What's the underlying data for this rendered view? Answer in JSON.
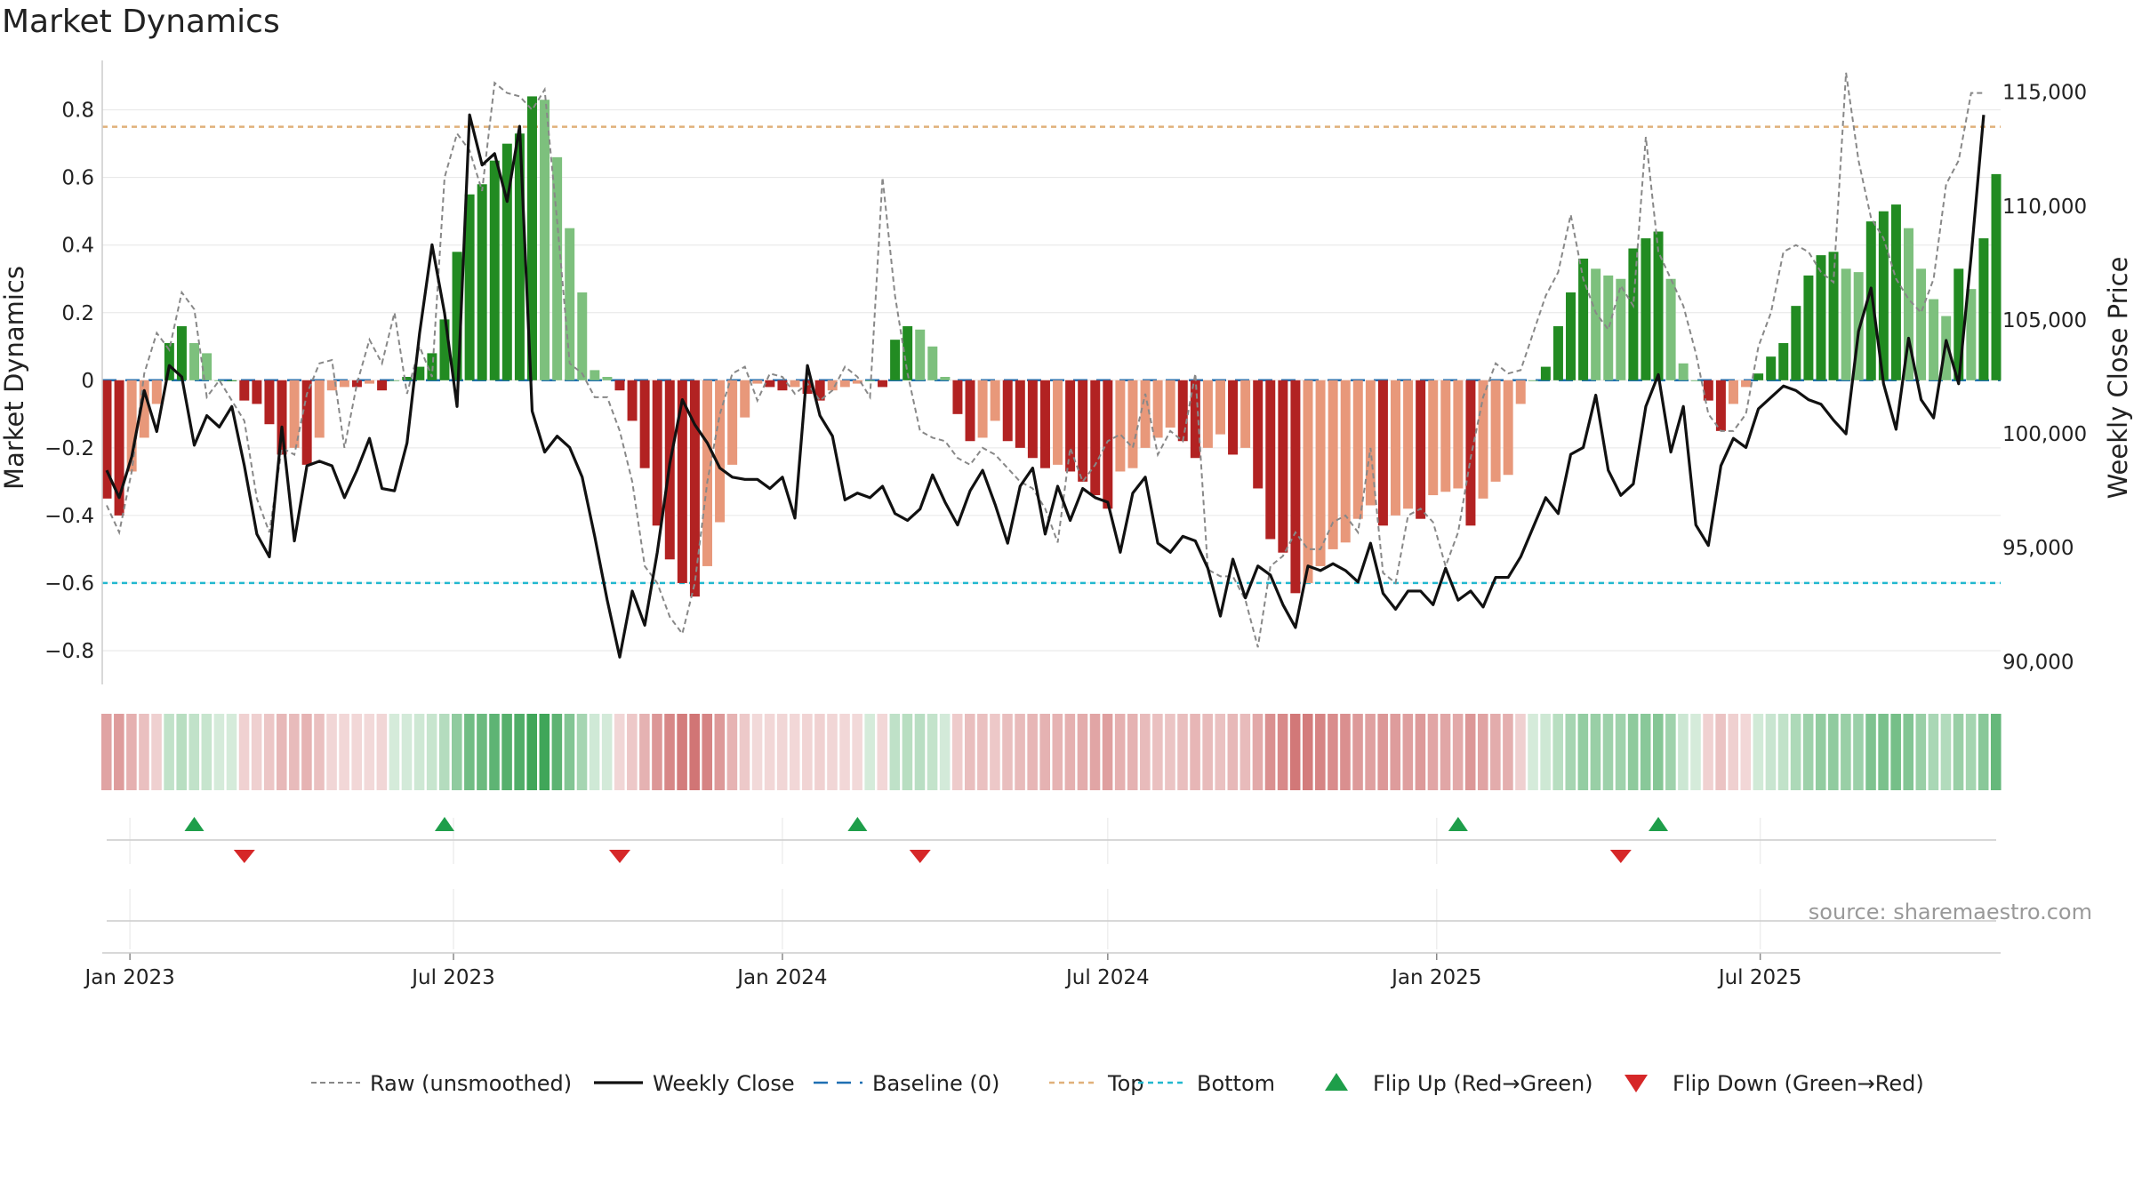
{
  "chart_data": {
    "type": "bar",
    "title": "Market Dynamics",
    "ylabel": "Market Dynamics",
    "y2label": "Weekly Close Price",
    "source": "source: sharemaestro.com",
    "ylim": [
      -0.9,
      0.92
    ],
    "y2lim": [
      89000,
      116000
    ],
    "yticks": [
      "0.8",
      "0.6",
      "0.4",
      "0.2",
      "0",
      "−0.2",
      "−0.4",
      "−0.6",
      "−0.8"
    ],
    "y2ticks": [
      "115,000",
      "110,000",
      "105,000",
      "100,000",
      "95,000",
      "90,000"
    ],
    "xticks": [
      "Jan 2023",
      "Jul 2023",
      "Jan 2024",
      "Jul 2024",
      "Jan 2025",
      "Jul 2025"
    ],
    "x_start": "2022-12-19",
    "top_level": 0.75,
    "bottom_level": -0.6,
    "baseline": 0,
    "grid": true,
    "legend_position": "bottom",
    "colors": {
      "strong_up": "#228b22",
      "weak_up": "#7dc07d",
      "strong_down": "#b22222",
      "weak_down": "#e8987a",
      "close": "#111111",
      "raw": "#888888",
      "baseline": "#1f6fb2",
      "top": "#e0b07a",
      "bottom": "#22b8cf",
      "flip_up": "#1e9e4a",
      "flip_down": "#d62728"
    },
    "series": [
      {
        "name": "Market Dynamics (smoothed)",
        "values": [
          -0.35,
          -0.4,
          -0.27,
          -0.17,
          -0.07,
          0.11,
          0.16,
          0.11,
          0.08,
          0,
          0,
          -0.06,
          -0.07,
          -0.13,
          -0.22,
          -0.2,
          -0.25,
          -0.17,
          -0.03,
          -0.02,
          -0.02,
          -0.01,
          -0.03,
          0,
          0.01,
          0.04,
          0.08,
          0.18,
          0.38,
          0.55,
          0.58,
          0.65,
          0.7,
          0.73,
          0.84,
          0.83,
          0.66,
          0.45,
          0.26,
          0.03,
          0.01,
          -0.03,
          -0.12,
          -0.26,
          -0.43,
          -0.53,
          -0.6,
          -0.64,
          -0.55,
          -0.42,
          -0.25,
          -0.11,
          -0.01,
          -0.02,
          -0.03,
          -0.02,
          -0.04,
          -0.06,
          -0.03,
          -0.02,
          -0.01,
          0,
          -0.02,
          0.12,
          0.16,
          0.15,
          0.1,
          0.01,
          -0.1,
          -0.18,
          -0.17,
          -0.12,
          -0.18,
          -0.2,
          -0.23,
          -0.26,
          -0.25,
          -0.27,
          -0.3,
          -0.34,
          -0.38,
          -0.27,
          -0.26,
          -0.2,
          -0.17,
          -0.14,
          -0.18,
          -0.23,
          -0.2,
          -0.16,
          -0.22,
          -0.2,
          -0.32,
          -0.47,
          -0.51,
          -0.63,
          -0.6,
          -0.55,
          -0.5,
          -0.48,
          -0.41,
          -0.37,
          -0.43,
          -0.4,
          -0.38,
          -0.41,
          -0.34,
          -0.33,
          -0.32,
          -0.43,
          -0.35,
          -0.3,
          -0.28,
          -0.07,
          0,
          0.04,
          0.16,
          0.26,
          0.36,
          0.33,
          0.31,
          0.3,
          0.39,
          0.42,
          0.44,
          0.3,
          0.05,
          0,
          -0.06,
          -0.15,
          -0.07,
          -0.02,
          0.02,
          0.07,
          0.11,
          0.22,
          0.31,
          0.37,
          0.38,
          0.33,
          0.32,
          0.47,
          0.5,
          0.52,
          0.45,
          0.33,
          0.24,
          0.19,
          0.33,
          0.27,
          0.42,
          0.61
        ]
      },
      {
        "name": "Raw (unsmoothed)",
        "values": [
          -0.37,
          -0.45,
          -0.27,
          0.02,
          0.14,
          0.09,
          0.26,
          0.21,
          -0.05,
          0,
          -0.06,
          -0.12,
          -0.35,
          -0.45,
          -0.2,
          -0.22,
          -0.04,
          0.05,
          0.06,
          -0.2,
          -0.01,
          0.12,
          0.05,
          0.2,
          -0.04,
          0.1,
          0.01,
          0.6,
          0.73,
          0.68,
          0.56,
          0.88,
          0.85,
          0.84,
          0.8,
          0.86,
          0.47,
          0.05,
          0.02,
          -0.05,
          -0.05,
          -0.15,
          -0.3,
          -0.55,
          -0.6,
          -0.7,
          -0.75,
          -0.6,
          -0.3,
          -0.1,
          0.02,
          0.04,
          -0.06,
          0.02,
          0.01,
          -0.04,
          -0.01,
          -0.06,
          -0.03,
          0.04,
          0.01,
          -0.05,
          0.6,
          0.25,
          0.02,
          -0.15,
          -0.17,
          -0.18,
          -0.23,
          -0.25,
          -0.2,
          -0.22,
          -0.26,
          -0.3,
          -0.32,
          -0.38,
          -0.48,
          -0.2,
          -0.3,
          -0.25,
          -0.18,
          -0.16,
          -0.2,
          -0.04,
          -0.22,
          -0.15,
          -0.18,
          0.02,
          -0.56,
          -0.58,
          -0.58,
          -0.65,
          -0.79,
          -0.55,
          -0.52,
          -0.45,
          -0.5,
          -0.5,
          -0.42,
          -0.4,
          -0.45,
          -0.2,
          -0.57,
          -0.6,
          -0.4,
          -0.38,
          -0.42,
          -0.55,
          -0.45,
          -0.23,
          -0.05,
          0.05,
          0.02,
          0.03,
          0.14,
          0.25,
          0.32,
          0.49,
          0.3,
          0.2,
          0.15,
          0.28,
          0.22,
          0.72,
          0.38,
          0.3,
          0.22,
          0.08,
          -0.1,
          -0.15,
          -0.15,
          -0.1,
          0.1,
          0.2,
          0.38,
          0.4,
          0.38,
          0.32,
          0.29,
          0.91,
          0.65,
          0.48,
          0.42,
          0.3,
          0.24,
          0.2,
          0.3,
          0.58,
          0.65,
          0.85,
          0.85
        ]
      },
      {
        "name": "Weekly Close",
        "values": [
          98.4,
          97.2,
          99,
          101.9,
          100.1,
          103,
          102.5,
          99.5,
          100.8,
          100.3,
          101.2,
          98.6,
          95.6,
          94.6,
          100.3,
          95.3,
          98.6,
          98.8,
          98.6,
          97.2,
          98.4,
          99.8,
          97.6,
          97.5,
          99.6,
          104.4,
          108.3,
          105.3,
          101.2,
          114,
          111.8,
          112.3,
          110.2,
          113.5,
          101,
          99.2,
          99.9,
          99.4,
          98.1,
          95.5,
          92.7,
          90.2,
          93.1,
          91.6,
          94.8,
          98.7,
          101.5,
          100.4,
          99.6,
          98.5,
          98.1,
          98,
          98,
          97.6,
          98.1,
          96.3,
          103,
          100.8,
          99.9,
          97.1,
          97.4,
          97.2,
          97.7,
          96.5,
          96.2,
          96.7,
          98.2,
          97,
          96,
          97.5,
          98.4,
          96.9,
          95.2,
          97.7,
          98.5,
          95.6,
          97.7,
          96.2,
          97.6,
          97.2,
          97,
          94.8,
          97.4,
          98.1,
          95.2,
          94.8,
          95.5,
          95.3,
          94.1,
          92,
          94.5,
          92.8,
          94.2,
          93.8,
          92.5,
          91.5,
          94.2,
          94,
          94.3,
          94,
          93.5,
          95.2,
          93,
          92.3,
          93.1,
          93.1,
          92.5,
          94.1,
          92.7,
          93.1,
          92.4,
          93.7,
          93.7,
          94.6,
          95.9,
          97.2,
          96.5,
          99.1,
          99.4,
          101.7,
          98.4,
          97.3,
          97.8,
          101.2,
          102.6,
          99.2,
          101.2,
          96,
          95.1,
          98.6,
          99.8,
          99.4,
          101.1,
          101.6,
          102.1,
          101.9,
          101.5,
          101.3,
          100.6,
          100,
          104.5,
          106.4,
          102.2,
          100.2,
          104.2,
          101.5,
          100.7,
          104.1,
          102.2,
          107.8,
          114
        ]
      }
    ],
    "flip_up_dates": [
      "2023-02-06",
      "2023-06-26",
      "2024-02-12",
      "2025-01-13",
      "2025-05-05"
    ],
    "flip_down_dates": [
      "2023-03-06",
      "2023-10-02",
      "2024-03-18",
      "2025-04-14"
    ],
    "legend": [
      {
        "label": "Raw (unsmoothed)",
        "style": "raw"
      },
      {
        "label": "Weekly Close",
        "style": "close"
      },
      {
        "label": "Baseline (0)",
        "style": "baseline"
      },
      {
        "label": "Top",
        "style": "top"
      },
      {
        "label": "Bottom",
        "style": "bottom"
      },
      {
        "label": "Flip Up (Red→Green)",
        "style": "flip_up"
      },
      {
        "label": "Flip Down (Green→Red)",
        "style": "flip_down"
      }
    ]
  }
}
